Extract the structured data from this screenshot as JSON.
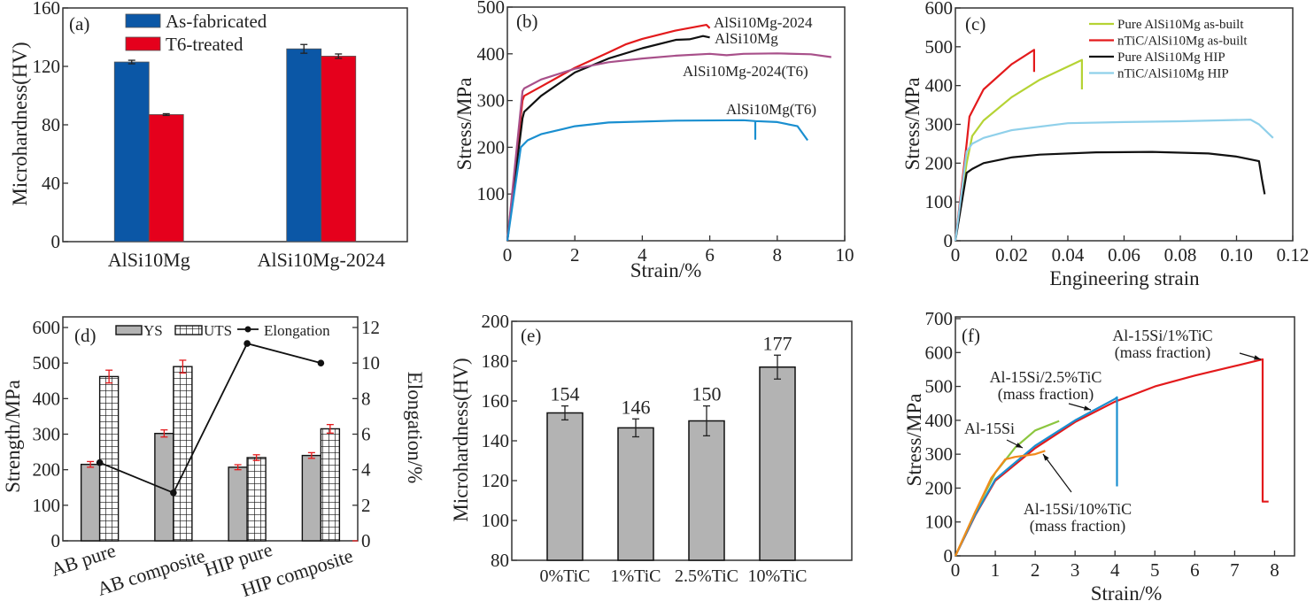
{
  "chart_data": [
    {
      "type": "bar",
      "panel_label": "(a)",
      "ylabel": "Microhardness(HV)",
      "xlabel": "",
      "ylim": [
        0,
        160
      ],
      "yticks": [
        0,
        40,
        80,
        120,
        160
      ],
      "categories": [
        "AlSi10Mg",
        "AlSi10Mg-2024"
      ],
      "legend": "top-left",
      "series": [
        {
          "name": "As-fabricated",
          "color": "#0b57a6",
          "values": [
            123,
            132
          ],
          "errors": [
            1.2,
            3
          ]
        },
        {
          "name": "T6-treated",
          "color": "#e5001c",
          "values": [
            87,
            127
          ],
          "errors": [
            0.6,
            1.5
          ]
        }
      ]
    },
    {
      "type": "line",
      "panel_label": "(b)",
      "xlabel": "Strain/%",
      "ylabel": "Stress/MPa",
      "xlim": [
        0,
        10
      ],
      "ylim": [
        0,
        500
      ],
      "xticks": [
        0,
        2,
        4,
        6,
        8,
        10
      ],
      "yticks": [
        100,
        200,
        300,
        400,
        500
      ],
      "series": [
        {
          "name": "AlSi10Mg-2024",
          "color": "#e31a1c",
          "points": [
            [
              0,
              0
            ],
            [
              0.45,
              300
            ],
            [
              0.5,
              310
            ],
            [
              1,
              330
            ],
            [
              2,
              370
            ],
            [
              3,
              403
            ],
            [
              3.5,
              420
            ],
            [
              4,
              432
            ],
            [
              5,
              450
            ],
            [
              5.9,
              462
            ],
            [
              6,
              455
            ]
          ]
        },
        {
          "name": "AlSi10Mg",
          "color": "#111111",
          "points": [
            [
              0,
              0
            ],
            [
              0.45,
              262
            ],
            [
              0.5,
              276
            ],
            [
              1,
              310
            ],
            [
              2,
              360
            ],
            [
              3,
              390
            ],
            [
              4,
              412
            ],
            [
              5,
              430
            ],
            [
              5.4,
              431
            ],
            [
              5.8,
              438
            ],
            [
              6,
              435
            ]
          ]
        },
        {
          "name": "AlSi10Mg-2024(T6)",
          "color": "#a8508a",
          "points": [
            [
              0,
              0
            ],
            [
              0.45,
              320
            ],
            [
              0.5,
              326
            ],
            [
              1,
              345
            ],
            [
              2,
              368
            ],
            [
              3,
              382
            ],
            [
              4,
              390
            ],
            [
              5,
              396
            ],
            [
              6,
              400
            ],
            [
              6.5,
              397
            ],
            [
              7,
              400
            ],
            [
              8,
              401
            ],
            [
              9,
              399
            ],
            [
              9.6,
              393
            ]
          ]
        },
        {
          "name": "AlSi10Mg(T6)",
          "color": "#1a8fd0",
          "points": [
            [
              0,
              0
            ],
            [
              0.4,
              200
            ],
            [
              0.6,
              215
            ],
            [
              1,
              228
            ],
            [
              2,
              245
            ],
            [
              3,
              253
            ],
            [
              5,
              257
            ],
            [
              7,
              258
            ],
            [
              7.35,
              256
            ],
            [
              7.35,
              218
            ],
            [
              7.35,
              256
            ],
            [
              8,
              254
            ],
            [
              8.6,
              245
            ],
            [
              8.9,
              215
            ]
          ]
        }
      ]
    },
    {
      "type": "line",
      "panel_label": "(c)",
      "xlabel": "Engineering strain",
      "ylabel": "Stress/MPa",
      "xlim": [
        0,
        0.12
      ],
      "ylim": [
        0,
        600
      ],
      "xticks": [
        "0",
        "0.02",
        "0.04",
        "0.06",
        "0.08",
        "0.10",
        "0.12"
      ],
      "yticks": [
        0,
        100,
        200,
        300,
        400,
        500,
        600
      ],
      "legend": "top-right",
      "series": [
        {
          "name": "Pure AlSi10Mg as-built",
          "color": "#b5d334",
          "points": [
            [
              0,
              0
            ],
            [
              0.004,
              200
            ],
            [
              0.006,
              270
            ],
            [
              0.01,
              310
            ],
            [
              0.02,
              370
            ],
            [
              0.03,
              415
            ],
            [
              0.045,
              466
            ],
            [
              0.045,
              390
            ]
          ]
        },
        {
          "name": "nTiC/AlSi10Mg as-built",
          "color": "#e31a1c",
          "points": [
            [
              0,
              0
            ],
            [
              0.004,
              250
            ],
            [
              0.005,
              320
            ],
            [
              0.01,
              390
            ],
            [
              0.02,
              455
            ],
            [
              0.028,
              492
            ],
            [
              0.028,
              435
            ]
          ]
        },
        {
          "name": "Pure AlSi10Mg HIP",
          "color": "#111111",
          "points": [
            [
              0,
              0
            ],
            [
              0.004,
              175
            ],
            [
              0.006,
              185
            ],
            [
              0.01,
              200
            ],
            [
              0.02,
              215
            ],
            [
              0.03,
              222
            ],
            [
              0.05,
              228
            ],
            [
              0.07,
              229
            ],
            [
              0.09,
              225
            ],
            [
              0.1,
              217
            ],
            [
              0.108,
              205
            ],
            [
              0.109,
              160
            ],
            [
              0.11,
              120
            ]
          ]
        },
        {
          "name": "nTiC/AlSi10Mg HIP",
          "color": "#8fd0ea",
          "points": [
            [
              0,
              0
            ],
            [
              0.004,
              230
            ],
            [
              0.006,
              250
            ],
            [
              0.01,
              265
            ],
            [
              0.02,
              285
            ],
            [
              0.04,
              303
            ],
            [
              0.06,
              306
            ],
            [
              0.08,
              308
            ],
            [
              0.105,
              312
            ],
            [
              0.108,
              300
            ],
            [
              0.113,
              265
            ]
          ]
        }
      ]
    },
    {
      "type": "bar",
      "panel_label": "(d)",
      "ylabel": "Strength/MPa",
      "y2label": "Elongation/%",
      "ylim": [
        0,
        600
      ],
      "y2lim": [
        0,
        12
      ],
      "yticks": [
        0,
        100,
        200,
        300,
        400,
        500,
        600
      ],
      "y2ticks": [
        0,
        2,
        4,
        6,
        8,
        10,
        12
      ],
      "categories": [
        "AB pure",
        "AB composite",
        "HIP pure",
        "HIP composite"
      ],
      "legend": "top",
      "series": [
        {
          "name": "YS",
          "color": "#b3b3b3",
          "values": [
            215,
            302,
            207,
            240
          ],
          "errors": [
            8,
            10,
            7,
            8
          ]
        },
        {
          "name": "UTS",
          "color": "#ffffff",
          "values": [
            462,
            490,
            234,
            315
          ],
          "errors": [
            18,
            18,
            8,
            12
          ]
        },
        {
          "name": "Elongation",
          "color": "#111111",
          "type": "line",
          "axis": "right",
          "values": [
            4.4,
            2.7,
            11.1,
            10.0
          ]
        }
      ],
      "error_color": "#e31a1c"
    },
    {
      "type": "bar",
      "panel_label": "(e)",
      "ylabel": "Microhardness(HV)",
      "ylim": [
        80,
        200
      ],
      "yticks": [
        80,
        100,
        120,
        140,
        160,
        180,
        200
      ],
      "categories": [
        "0%TiC",
        "1%TiC",
        "2.5%TiC",
        "10%TiC"
      ],
      "series": [
        {
          "color": "#b3b3b3",
          "values": [
            154,
            146.5,
            150,
            177
          ],
          "errors": [
            3.5,
            4.5,
            7.5,
            6
          ]
        }
      ],
      "data_labels": [
        "154",
        "146",
        "150",
        "177"
      ]
    },
    {
      "type": "line",
      "panel_label": "(f)",
      "xlabel": "Strain/%",
      "ylabel": "Stress/MPa",
      "xlim": [
        0,
        8.5
      ],
      "ylim": [
        0,
        700
      ],
      "xticks": [
        0,
        1,
        2,
        3,
        4,
        5,
        6,
        7,
        8
      ],
      "yticks": [
        0,
        100,
        200,
        300,
        400,
        500,
        600,
        700
      ],
      "series": [
        {
          "name": "Al-15Si/1%TiC",
          "note": "(mass fraction)",
          "color": "#e31a1c",
          "points": [
            [
              0,
              0
            ],
            [
              0.5,
              120
            ],
            [
              1,
              222
            ],
            [
              2,
              318
            ],
            [
              3,
              395
            ],
            [
              4,
              455
            ],
            [
              5,
              500
            ],
            [
              6,
              532
            ],
            [
              7,
              560
            ],
            [
              7.7,
              580
            ],
            [
              7.7,
              160
            ],
            [
              7.85,
              160
            ]
          ]
        },
        {
          "name": "Al-15Si/2.5%TiC",
          "note": "(mass fraction)",
          "color": "#1a8fd0",
          "points": [
            [
              0,
              0
            ],
            [
              0.5,
              122
            ],
            [
              1,
              226
            ],
            [
              2,
              325
            ],
            [
              3,
              400
            ],
            [
              4,
              463
            ],
            [
              4.05,
              468
            ],
            [
              4.05,
              205
            ]
          ]
        },
        {
          "name": "Al-15Si",
          "color": "#8cc63f",
          "points": [
            [
              0,
              0
            ],
            [
              0.5,
              130
            ],
            [
              1,
              245
            ],
            [
              1.5,
              320
            ],
            [
              2,
              370
            ],
            [
              2.6,
              398
            ]
          ]
        },
        {
          "name": "Al-15Si/10%TiC",
          "note": "(mass fraction)",
          "color": "#f08a1c",
          "points": [
            [
              0,
              0
            ],
            [
              0.5,
              130
            ],
            [
              0.9,
              230
            ],
            [
              1.25,
              285
            ],
            [
              1.5,
              292
            ],
            [
              2.0,
              300
            ],
            [
              2.25,
              310
            ]
          ]
        }
      ]
    }
  ]
}
